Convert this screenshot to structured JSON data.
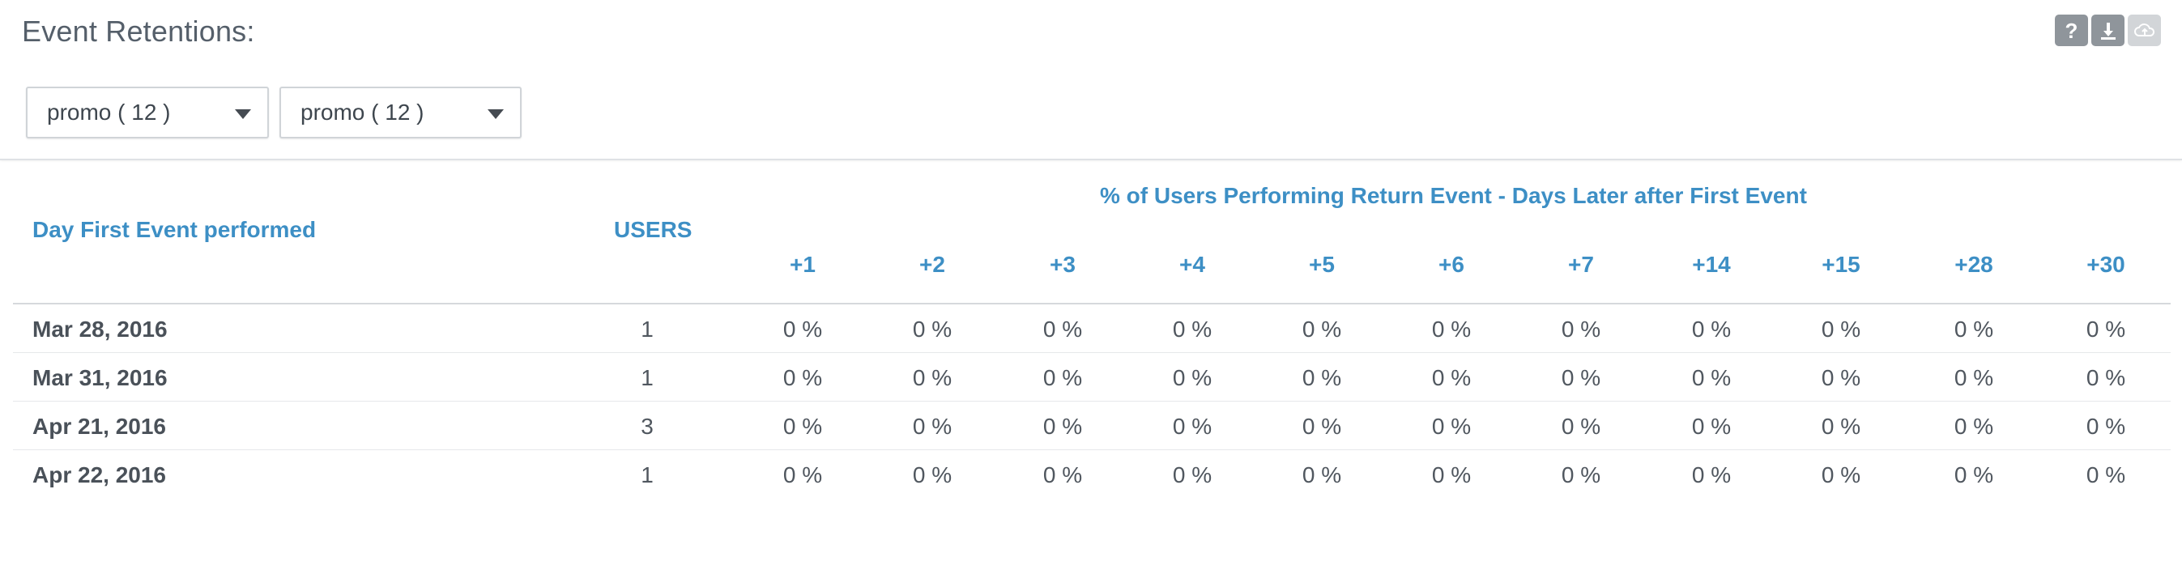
{
  "page": {
    "title": "Event Retentions:"
  },
  "toolbar": {
    "help_label": "?",
    "icons": [
      "help-icon",
      "download-icon",
      "cloud-icon"
    ]
  },
  "filters": [
    {
      "selected": "promo ( 12 )"
    },
    {
      "selected": "promo ( 12 )"
    }
  ],
  "table": {
    "col_day": "Day First Event performed",
    "col_users": "USERS",
    "group_header": "% of Users Performing Return Event - Days Later after First Event",
    "day_columns": [
      "+1",
      "+2",
      "+3",
      "+4",
      "+5",
      "+6",
      "+7",
      "+14",
      "+15",
      "+28",
      "+30"
    ],
    "rows": [
      {
        "date": "Mar 28, 2016",
        "users": "1",
        "values": [
          "0 %",
          "0 %",
          "0 %",
          "0 %",
          "0 %",
          "0 %",
          "0 %",
          "0 %",
          "0 %",
          "0 %",
          "0 %"
        ]
      },
      {
        "date": "Mar 31, 2016",
        "users": "1",
        "values": [
          "0 %",
          "0 %",
          "0 %",
          "0 %",
          "0 %",
          "0 %",
          "0 %",
          "0 %",
          "0 %",
          "0 %",
          "0 %"
        ]
      },
      {
        "date": "Apr 21, 2016",
        "users": "3",
        "values": [
          "0 %",
          "0 %",
          "0 %",
          "0 %",
          "0 %",
          "0 %",
          "0 %",
          "0 %",
          "0 %",
          "0 %",
          "0 %"
        ]
      },
      {
        "date": "Apr 22, 2016",
        "users": "1",
        "values": [
          "0 %",
          "0 %",
          "0 %",
          "0 %",
          "0 %",
          "0 %",
          "0 %",
          "0 %",
          "0 %",
          "0 %",
          "0 %"
        ]
      }
    ]
  },
  "colors": {
    "accent": "#3d8fc5",
    "text": "#555f6a",
    "icon_bg": "#8f959b"
  }
}
